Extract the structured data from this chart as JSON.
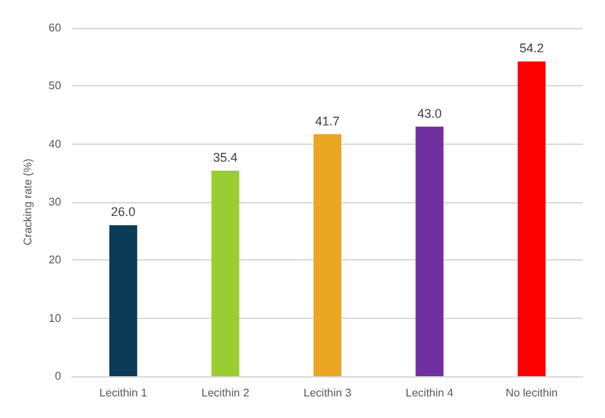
{
  "chart_data": {
    "type": "bar",
    "ylabel": "Cracking rate (%)",
    "categories": [
      "Lecithin 1",
      "Lecithin 2",
      "Lecithin 3",
      "Lecithin 4",
      "No lecithin"
    ],
    "values": [
      26.0,
      35.4,
      41.7,
      43.0,
      54.2
    ],
    "colors": [
      "#0b3b57",
      "#9acd32",
      "#e9a623",
      "#7030a0",
      "#ff0000"
    ],
    "value_labels": [
      "26.0",
      "35.4",
      "41.7",
      "43.0",
      "54.2"
    ],
    "ylim": [
      0,
      60
    ],
    "yticks": [
      0,
      10,
      20,
      30,
      40,
      50,
      60
    ],
    "grid": "y"
  }
}
